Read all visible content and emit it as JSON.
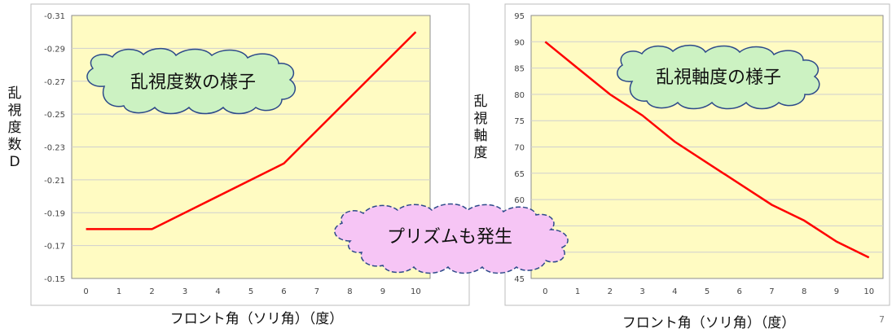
{
  "chart_data": [
    {
      "type": "line",
      "xlabel": "フロント角（ソリ角）（度）",
      "ylabel": "乱視度数D",
      "x": [
        0,
        1,
        2,
        3,
        4,
        5,
        6,
        7,
        8,
        9,
        10
      ],
      "yticks": [
        "-0.31",
        "-0.29",
        "-0.27",
        "-0.25",
        "-0.23",
        "-0.21",
        "-0.19",
        "-0.17",
        "-0.15"
      ],
      "ylim": [
        -0.15,
        -0.31
      ],
      "series": [
        {
          "x": [
            0,
            2,
            6,
            10
          ],
          "y": [
            -0.18,
            -0.18,
            -0.22,
            -0.3
          ],
          "color": "#ff0000"
        }
      ],
      "annotation": "乱視度数の様子"
    },
    {
      "type": "line",
      "xlabel": "フロント角（ソリ角）（度）",
      "ylabel": "乱視軸度",
      "x": [
        0,
        1,
        2,
        3,
        4,
        5,
        6,
        7,
        8,
        9,
        10
      ],
      "yticks": [
        "95",
        "90",
        "85",
        "80",
        "75",
        "70",
        "65",
        "60",
        "55",
        "50",
        "45"
      ],
      "ylim": [
        45,
        95
      ],
      "series": [
        {
          "x": [
            0,
            1,
            2,
            3,
            4,
            5,
            6,
            7,
            8,
            9,
            10
          ],
          "y": [
            90,
            85,
            80,
            76,
            71,
            67,
            63,
            59,
            56,
            52,
            49
          ],
          "color": "#ff0000"
        }
      ],
      "annotation": "乱視軸度の様子"
    }
  ],
  "overlay_label": "プリズムも発生",
  "page_number": "7",
  "colors": {
    "plot_bg": "#fffbc2",
    "line": "#ff0000",
    "grid": "#cfcfcf",
    "cloud_green": "#ccf2c2",
    "cloud_pink": "#f6c5f5",
    "cloud_outline": "#2d4a8a"
  }
}
